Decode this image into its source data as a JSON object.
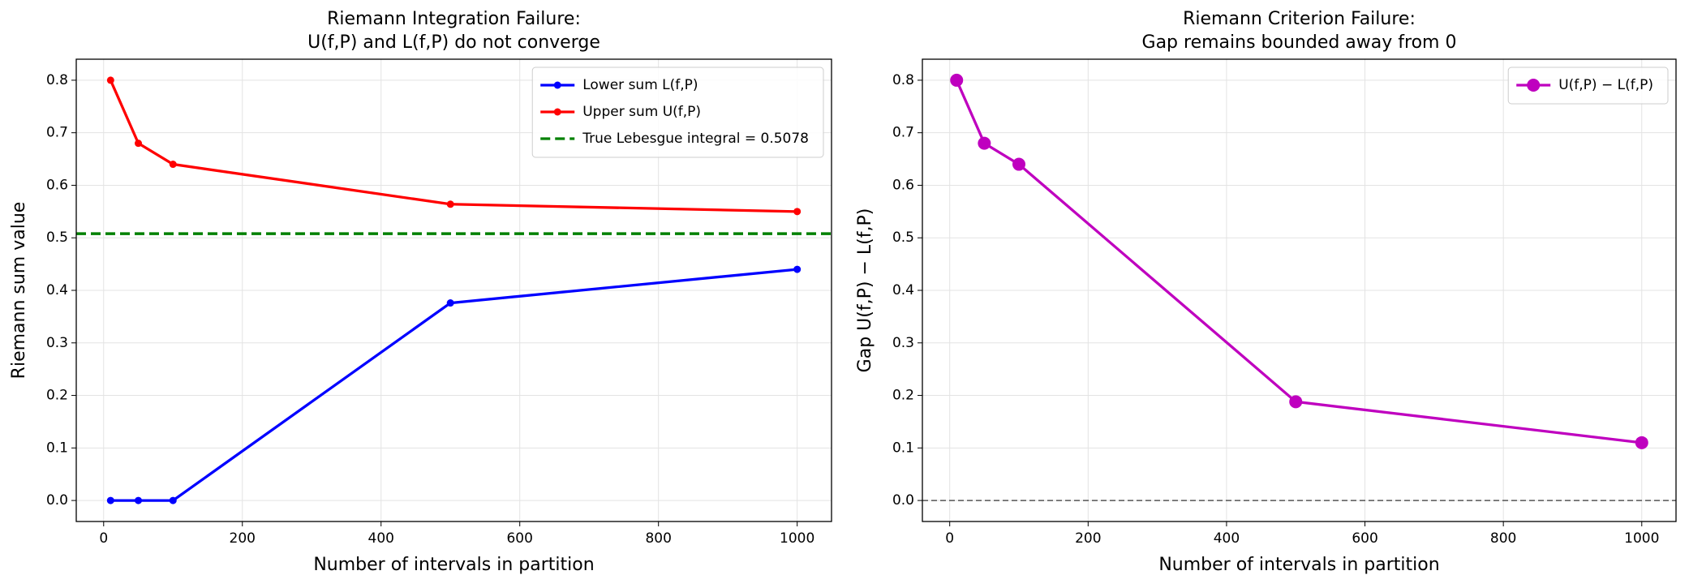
{
  "chart_data": [
    {
      "type": "line",
      "title": [
        "Riemann Integration Failure:",
        "U(f,P) and L(f,P) do not converge"
      ],
      "xlabel": "Number of intervals in partition",
      "ylabel": "Riemann sum value",
      "x": [
        10,
        50,
        100,
        500,
        1000
      ],
      "series": [
        {
          "name": "Lower sum L(f,P)",
          "color": "#0000ff",
          "values": [
            0,
            0,
            0,
            0.376,
            0.44
          ]
        },
        {
          "name": "Upper sum U(f,P)",
          "color": "#ff0000",
          "values": [
            0.8,
            0.68,
            0.64,
            0.564,
            0.55
          ]
        }
      ],
      "hlines": [
        {
          "y": 0.5078,
          "label": "True Lebesgue integral = 0.5078",
          "color": "#008000",
          "style": "dashed"
        }
      ],
      "xlim": [
        -39.5,
        1049.5
      ],
      "ylim": [
        -0.04,
        0.84
      ],
      "xticks": [
        0,
        200,
        400,
        600,
        800,
        1000
      ],
      "yticks": [
        {
          "value": 0,
          "label": "0.0"
        },
        0.1,
        0.2,
        0.3,
        0.4,
        0.5,
        0.6,
        0.7,
        0.8
      ],
      "grid": true,
      "legend": "upper right"
    },
    {
      "type": "line",
      "title": [
        "Riemann Criterion Failure:",
        "Gap remains bounded away from 0"
      ],
      "xlabel": "Number of intervals in partition",
      "ylabel": "Gap U(f,P) − L(f,P)",
      "x": [
        10,
        50,
        100,
        500,
        1000
      ],
      "series": [
        {
          "name": "U(f,P) − L(f,P)",
          "color": "#bf00bf",
          "values": [
            0.8,
            0.68,
            0.64,
            0.188,
            0.11
          ]
        }
      ],
      "hlines": [
        {
          "y": 0,
          "color": "#555555",
          "style": "dashed"
        }
      ],
      "xlim": [
        -39.5,
        1049.5
      ],
      "ylim": [
        -0.04,
        0.84
      ],
      "xticks": [
        0,
        200,
        400,
        600,
        800,
        1000
      ],
      "yticks": [
        {
          "value": 0,
          "label": "0.0"
        },
        0.1,
        0.2,
        0.3,
        0.4,
        0.5,
        0.6,
        0.7,
        0.8
      ],
      "grid": true,
      "legend": "upper right"
    }
  ]
}
